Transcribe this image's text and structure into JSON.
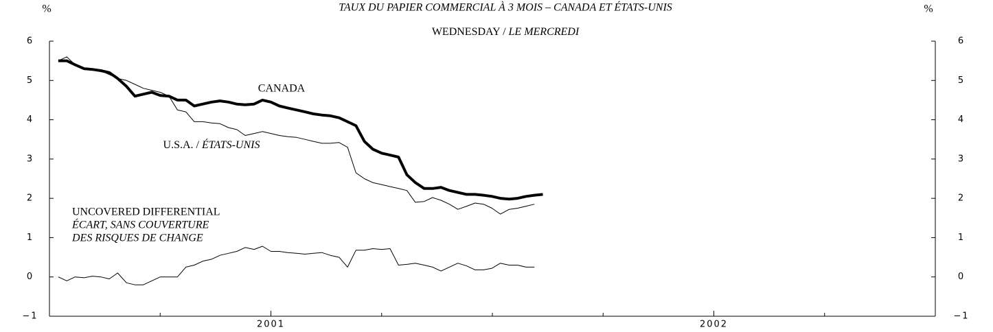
{
  "chart_data": {
    "type": "line",
    "title": "TAUX DU PAPIER COMMERCIAL À 3 MOIS – CANADA ET ÉTATS-UNIS",
    "subtitle": [
      "WEDNESDAY /",
      "LE MERCREDI"
    ],
    "y_unit": "%",
    "y2_unit": "%",
    "x": [
      2001.02,
      2001.039,
      2001.058,
      2001.078,
      2001.097,
      2001.116,
      2001.135,
      2001.154,
      2001.174,
      2001.193,
      2001.212,
      2001.231,
      2001.25,
      2001.27,
      2001.289,
      2001.308,
      2001.327,
      2001.346,
      2001.366,
      2001.385,
      2001.404,
      2001.423,
      2001.442,
      2001.462,
      2001.481,
      2001.5,
      2001.519,
      2001.538,
      2001.558,
      2001.577,
      2001.596,
      2001.615,
      2001.634,
      2001.654,
      2001.673,
      2001.692,
      2001.711,
      2001.73,
      2001.75,
      2001.769,
      2001.788,
      2001.807,
      2001.826,
      2001.846,
      2001.865,
      2001.884,
      2001.903,
      2001.922,
      2001.942,
      2001.961,
      2001.98,
      2001.999,
      2002.018,
      2002.038,
      2002.057,
      2002.076,
      2002.095,
      2002.114
    ],
    "series": [
      {
        "label": [
          {
            "text": "CANADA",
            "italic": false
          }
        ],
        "color": "#000000",
        "width": 4,
        "values": [
          5.5,
          5.5,
          5.4,
          5.3,
          5.28,
          5.25,
          5.2,
          5.05,
          4.85,
          4.6,
          4.65,
          4.7,
          4.62,
          4.6,
          4.5,
          4.5,
          4.35,
          4.4,
          4.45,
          4.48,
          4.45,
          4.4,
          4.38,
          4.4,
          4.5,
          4.45,
          4.35,
          4.3,
          4.25,
          4.2,
          4.15,
          4.12,
          4.1,
          4.05,
          3.95,
          3.85,
          3.45,
          3.25,
          3.15,
          3.1,
          3.05,
          2.6,
          2.4,
          2.25,
          2.25,
          2.28,
          2.2,
          2.15,
          2.1,
          2.1,
          2.08,
          2.05,
          2.0,
          1.98,
          2.0,
          2.05,
          2.08,
          2.1
        ]
      },
      {
        "label": [
          {
            "text": "U.S.A. /",
            "italic": false
          },
          {
            "text": "ÉTATS-UNIS",
            "italic": true
          }
        ],
        "color": "#000000",
        "width": 1,
        "values": [
          5.5,
          5.6,
          5.4,
          5.3,
          5.3,
          5.25,
          5.15,
          5.05,
          5.0,
          4.9,
          4.8,
          4.75,
          4.7,
          4.6,
          4.25,
          4.2,
          3.95,
          3.95,
          3.92,
          3.9,
          3.8,
          3.75,
          3.6,
          3.65,
          3.7,
          3.65,
          3.6,
          3.57,
          3.55,
          3.5,
          3.45,
          3.4,
          3.4,
          3.42,
          3.3,
          2.65,
          2.5,
          2.4,
          2.35,
          2.3,
          2.25,
          2.2,
          1.9,
          1.92,
          2.02,
          1.95,
          1.85,
          1.72,
          1.8,
          1.88,
          1.85,
          1.75,
          1.6,
          1.72,
          1.75,
          1.8,
          1.85,
          null
        ]
      },
      {
        "label": [
          {
            "text": "UNCOVERED DIFFERENTIAL",
            "italic": false
          },
          {
            "text": "ÉCART, SANS COUVERTURE",
            "italic": true
          },
          {
            "text": "DES RISQUES DE CHANGE",
            "italic": true
          }
        ],
        "color": "#000000",
        "width": 1,
        "values": [
          0,
          -0.1,
          0,
          -0.02,
          0.02,
          0,
          -0.05,
          0.1,
          -0.15,
          -0.2,
          -0.2,
          -0.1,
          0,
          0,
          0,
          0.25,
          0.3,
          0.4,
          0.45,
          0.55,
          0.6,
          0.65,
          0.75,
          0.7,
          0.78,
          0.65,
          0.65,
          0.62,
          0.6,
          0.58,
          0.6,
          0.62,
          0.55,
          0.5,
          0.25,
          0.68,
          0.68,
          0.72,
          0.7,
          0.72,
          0.3,
          0.32,
          0.35,
          0.3,
          0.25,
          0.15,
          0.25,
          0.35,
          0.28,
          0.18,
          0.18,
          0.22,
          0.35,
          0.3,
          0.3,
          0.25,
          0.25,
          null
        ]
      }
    ],
    "xlim": [
      2001,
      2003
    ],
    "xticks": [
      {
        "value": 2001.5,
        "label": "2001"
      },
      {
        "value": 2002.5,
        "label": "2002"
      }
    ],
    "x_minor_ticks": [
      2001.25,
      2001.75,
      2002,
      2002.25,
      2002.75
    ],
    "ylim": [
      -1,
      6
    ],
    "yticks": [
      {
        "value": -1,
        "label": "−1"
      },
      0,
      1,
      2,
      3,
      4,
      5,
      6
    ],
    "y2lim": [
      -1,
      6
    ],
    "y2ticks": [
      {
        "value": -1,
        "label": "−1"
      },
      0,
      1,
      2,
      3,
      4,
      5,
      6
    ],
    "grid": false
  }
}
